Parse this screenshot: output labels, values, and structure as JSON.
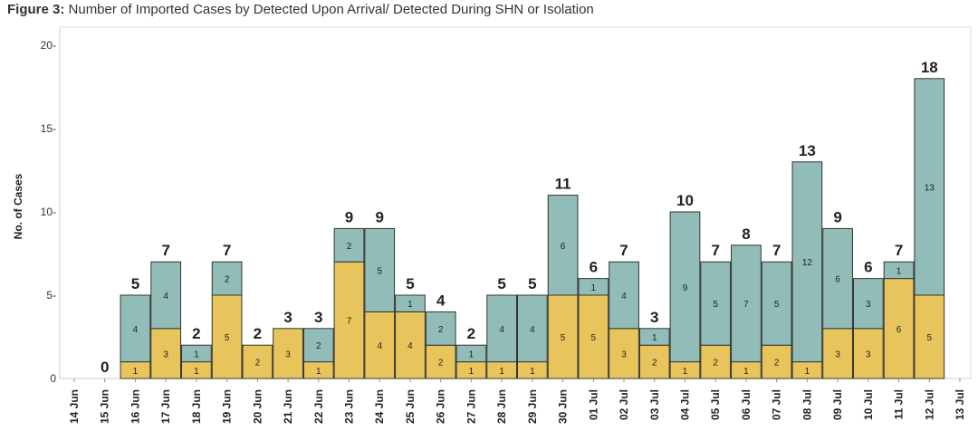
{
  "figure_label": "Figure 3:",
  "chart_data": {
    "type": "bar",
    "stacked": true,
    "title": "Number of Imported Cases by Detected Upon Arrival/ Detected During SHN or Isolation",
    "xlabel": "",
    "ylabel": "No. of Cases",
    "ylim": [
      0,
      20
    ],
    "yticks": [
      0,
      5,
      10,
      15,
      20
    ],
    "ytick_labels": [
      "0",
      "5-",
      "10-",
      "15-",
      "20-"
    ],
    "categories": [
      "14 Jun",
      "15 Jun",
      "16 Jun",
      "17 Jun",
      "18 Jun",
      "19 Jun",
      "20 Jun",
      "21 Jun",
      "22 Jun",
      "23 Jun",
      "24 Jun",
      "25 Jun",
      "26 Jun",
      "27 Jun",
      "28 Jun",
      "29 Jun",
      "30 Jun",
      "01 Jul",
      "02 Jul",
      "03 Jul",
      "04 Jul",
      "05 Jul",
      "06 Jul",
      "07 Jul",
      "08 Jul",
      "09 Jul",
      "10 Jul",
      "11 Jul",
      "12 Jul",
      "13 Jul"
    ],
    "series": [
      {
        "name": "Detected Upon Arrival",
        "color": "#e8c55c",
        "values": [
          null,
          null,
          1,
          3,
          1,
          5,
          2,
          3,
          1,
          7,
          4,
          4,
          2,
          1,
          1,
          1,
          5,
          5,
          3,
          2,
          1,
          2,
          1,
          2,
          1,
          3,
          3,
          6,
          5,
          null
        ],
        "labels": [
          "",
          "",
          "1",
          "3",
          "1",
          "5",
          "2",
          "3",
          "1",
          "7",
          "4",
          "4",
          "2",
          "1",
          "1",
          "1",
          "5",
          "5",
          "3",
          "2",
          "1",
          "2",
          "1",
          "2",
          "1",
          "3",
          "3",
          "6",
          "5",
          ""
        ]
      },
      {
        "name": "Detected During SHN or Isolation",
        "color": "#92bcb7",
        "values": [
          null,
          null,
          4,
          4,
          1,
          2,
          null,
          null,
          2,
          2,
          5,
          1,
          2,
          1,
          4,
          4,
          6,
          1,
          4,
          1,
          9,
          5,
          7,
          5,
          12,
          6,
          3,
          1,
          13,
          null
        ],
        "labels": [
          "",
          "",
          "4",
          "4",
          "1",
          "2",
          "",
          "",
          "2",
          "2",
          "5",
          "1",
          "2",
          "1",
          "4",
          "4",
          "6",
          "1",
          "4",
          "1",
          "9",
          "5",
          "7",
          "5",
          "12",
          "6",
          "3",
          "1",
          "13",
          ""
        ]
      }
    ],
    "totals": [
      null,
      0,
      5,
      7,
      2,
      7,
      2,
      3,
      3,
      9,
      9,
      5,
      4,
      2,
      5,
      5,
      11,
      6,
      7,
      3,
      10,
      7,
      8,
      7,
      13,
      9,
      6,
      7,
      18,
      null
    ],
    "total_labels": [
      "",
      "0",
      "5",
      "7",
      "2",
      "7",
      "2",
      "3",
      "3",
      "9",
      "9",
      "5",
      "4",
      "2",
      "5",
      "5",
      "11",
      "6",
      "7",
      "3",
      "10",
      "7",
      "8",
      "7",
      "13",
      "9",
      "6",
      "7",
      "18",
      ""
    ],
    "grid": false
  }
}
